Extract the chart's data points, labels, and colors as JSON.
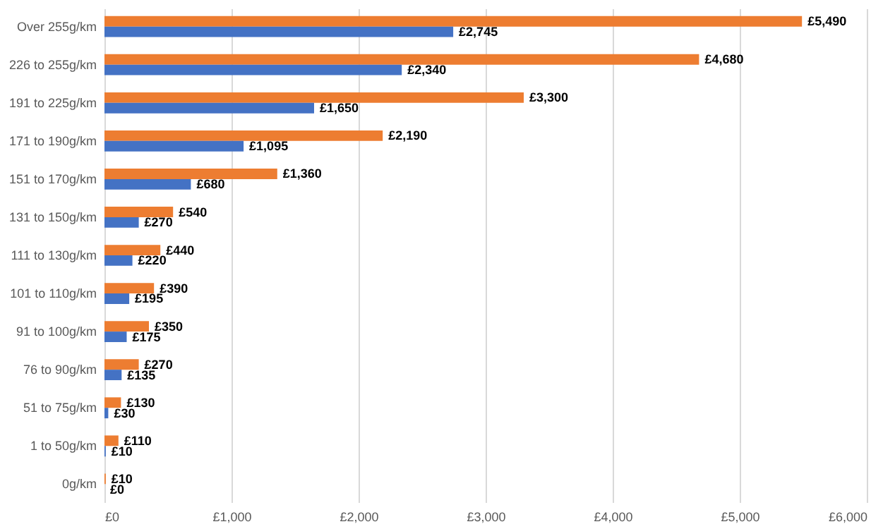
{
  "chart_data": {
    "type": "bar",
    "orientation": "horizontal",
    "categories": [
      "Over 255g/km",
      "226 to 255g/km",
      "191 to 225g/km",
      "171 to 190g/km",
      "151 to 170g/km",
      "131 to 150g/km",
      "111 to 130g/km",
      "101 to 110g/km",
      "91 to 100g/km",
      "76 to 90g/km",
      "51 to 75g/km",
      "1 to 50g/km",
      "0g/km"
    ],
    "series": [
      {
        "color": "#ed7d31",
        "values": [
          5490,
          4680,
          3300,
          2190,
          1360,
          540,
          440,
          390,
          350,
          270,
          130,
          110,
          10
        ],
        "value_labels": [
          "£5,490",
          "£4,680",
          "£3,300",
          "£2,190",
          "£1,360",
          "£540",
          "£440",
          "£390",
          "£350",
          "£270",
          "£130",
          "£110",
          "£10"
        ]
      },
      {
        "color": "#4472c4",
        "values": [
          2745,
          2340,
          1650,
          1095,
          680,
          270,
          220,
          195,
          175,
          135,
          30,
          10,
          0
        ],
        "value_labels": [
          "£2,745",
          "£2,340",
          "£1,650",
          "£1,095",
          "£680",
          "£270",
          "£220",
          "£195",
          "£175",
          "£135",
          "£30",
          "£10",
          "£0"
        ]
      }
    ],
    "xlim": [
      0,
      6000
    ],
    "xticks": [
      {
        "value": 0,
        "label": "£0"
      },
      {
        "value": 1000,
        "label": "£1,000"
      },
      {
        "value": 2000,
        "label": "£2,000"
      },
      {
        "value": 3000,
        "label": "£3,000"
      },
      {
        "value": 4000,
        "label": "£4,000"
      },
      {
        "value": 5000,
        "label": "£5,000"
      },
      {
        "value": 6000,
        "label": "£6,000"
      }
    ],
    "grid": "x",
    "legend": false
  }
}
